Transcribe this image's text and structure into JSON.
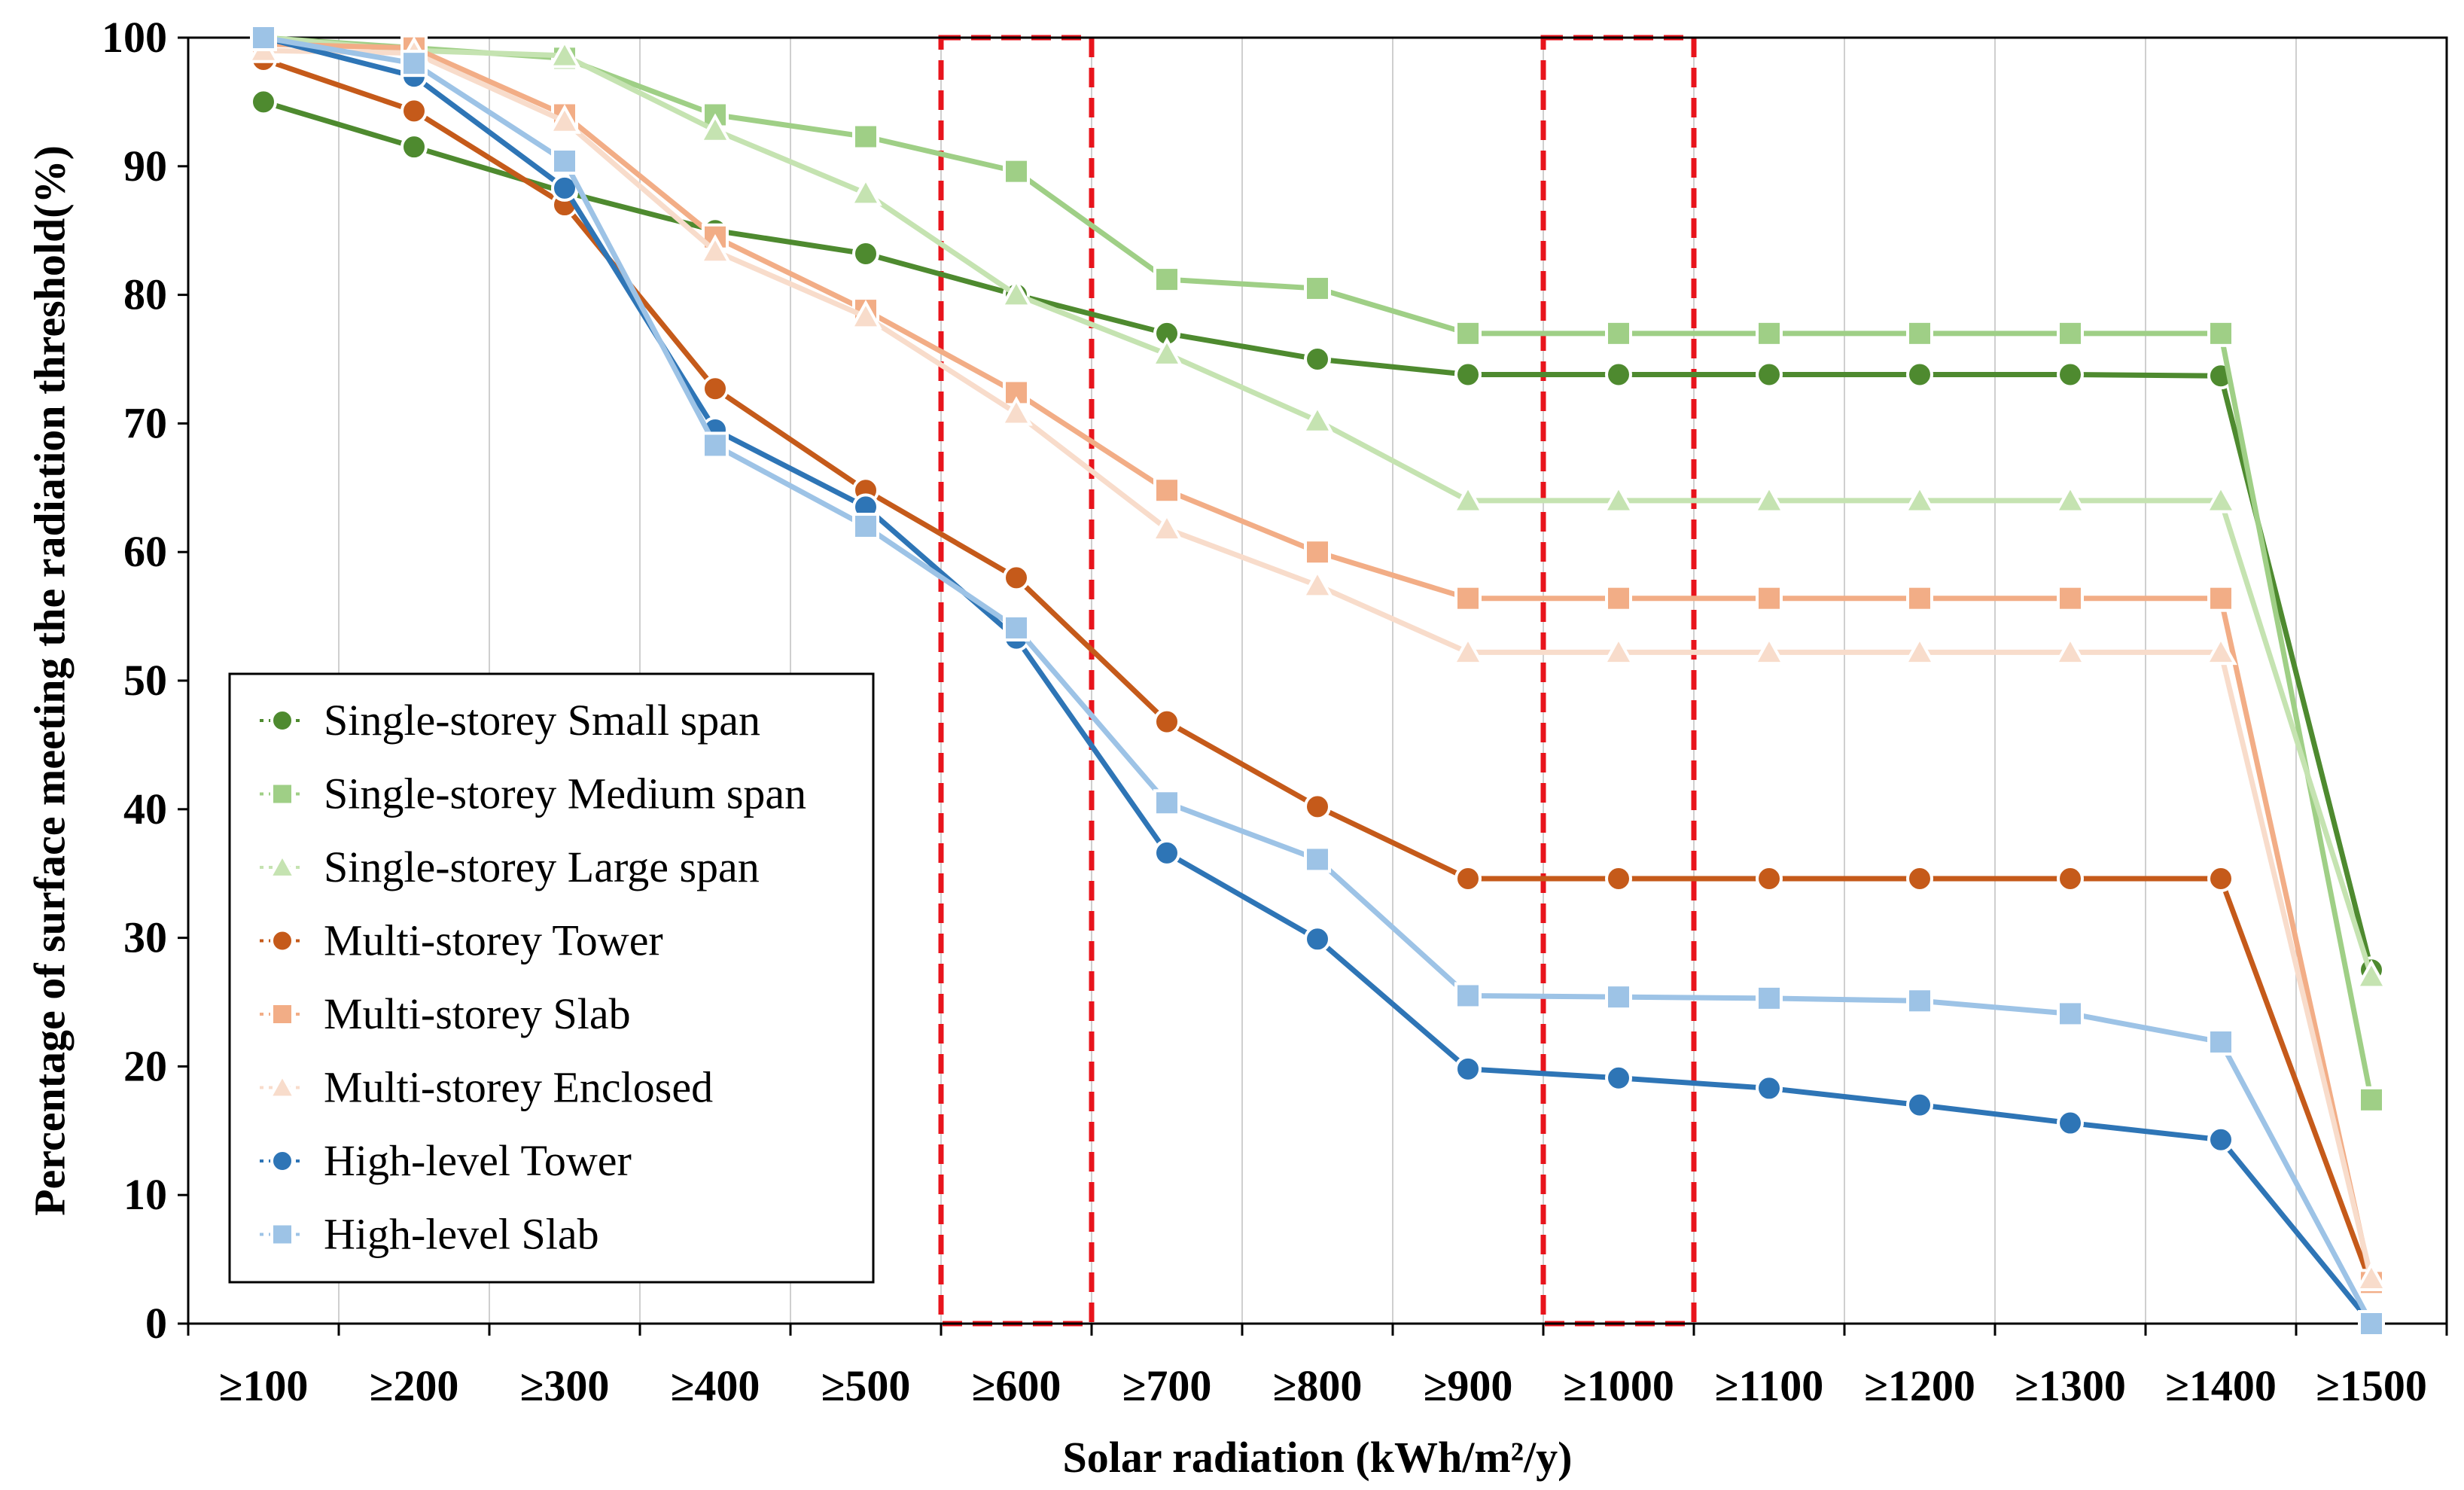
{
  "chart_data": {
    "type": "line",
    "title": "",
    "xlabel": "Solar radiation (kWh/m²/y)",
    "ylabel": "Percentage of surface meeting the radiation threshold(%)",
    "categories": [
      "≥100",
      "≥200",
      "≥300",
      "≥400",
      "≥500",
      "≥600",
      "≥700",
      "≥800",
      "≥900",
      "≥1000",
      "≥1100",
      "≥1200",
      "≥1300",
      "≥1400",
      "≥1500"
    ],
    "ylim": [
      0,
      100
    ],
    "yticks": [
      "0",
      "10",
      "20",
      "30",
      "40",
      "50",
      "60",
      "70",
      "80",
      "90",
      "100"
    ],
    "grid": "vertical",
    "legend_position": "lower-left",
    "highlight_boxes": [
      {
        "from": "≥600",
        "color": "#e8141c"
      },
      {
        "from": "≥1000",
        "color": "#e8141c"
      }
    ],
    "series": [
      {
        "name": "Single-storey Small span",
        "color": "#4e8a2f",
        "marker": "circle",
        "values": [
          95.0,
          91.5,
          88.0,
          85.0,
          83.2,
          80.0,
          77.0,
          75.0,
          73.8,
          73.8,
          73.8,
          73.8,
          73.8,
          73.7,
          27.5
        ]
      },
      {
        "name": "Single-storey Medium span",
        "color": "#9fcf86",
        "marker": "square",
        "values": [
          100,
          99.2,
          98.4,
          94.0,
          92.3,
          89.6,
          81.2,
          80.5,
          77.0,
          77.0,
          77.0,
          77.0,
          77.0,
          77.0,
          17.4
        ]
      },
      {
        "name": "Single-storey Large span",
        "color": "#c5e3b1",
        "marker": "triangle",
        "values": [
          100,
          99.0,
          98.6,
          92.8,
          87.9,
          80.0,
          75.4,
          70.2,
          64.0,
          64.0,
          64.0,
          64.0,
          64.0,
          64.0,
          27.0
        ]
      },
      {
        "name": "Multi-storey Tower",
        "color": "#c55a1a",
        "marker": "circle",
        "values": [
          98.3,
          94.3,
          87.0,
          72.7,
          64.8,
          58.0,
          46.8,
          40.2,
          34.6,
          34.6,
          34.6,
          34.6,
          34.6,
          34.6,
          3.0
        ]
      },
      {
        "name": "Multi-storey Slab",
        "color": "#f2ad86",
        "marker": "square",
        "values": [
          99.5,
          99.2,
          94.0,
          84.5,
          78.8,
          72.4,
          64.8,
          60.0,
          56.4,
          56.4,
          56.4,
          56.4,
          56.4,
          56.4,
          3.2
        ]
      },
      {
        "name": "Multi-storey Enclosed",
        "color": "#f8dccb",
        "marker": "triangle",
        "values": [
          99.0,
          98.8,
          93.5,
          83.4,
          78.3,
          70.8,
          61.8,
          57.4,
          52.2,
          52.2,
          52.2,
          52.2,
          52.2,
          52.2,
          3.5
        ]
      },
      {
        "name": "High-level Tower",
        "color": "#2e75b6",
        "marker": "circle",
        "values": [
          100,
          97.0,
          88.3,
          69.5,
          63.5,
          53.3,
          36.6,
          29.9,
          19.8,
          19.1,
          18.3,
          17.0,
          15.6,
          14.3,
          0.0
        ]
      },
      {
        "name": "High-level Slab",
        "color": "#9dc3e6",
        "marker": "square",
        "values": [
          100,
          98.0,
          90.4,
          68.3,
          62.0,
          54.1,
          40.5,
          36.1,
          25.5,
          25.4,
          25.3,
          25.1,
          24.1,
          21.9,
          0.0
        ]
      }
    ]
  }
}
